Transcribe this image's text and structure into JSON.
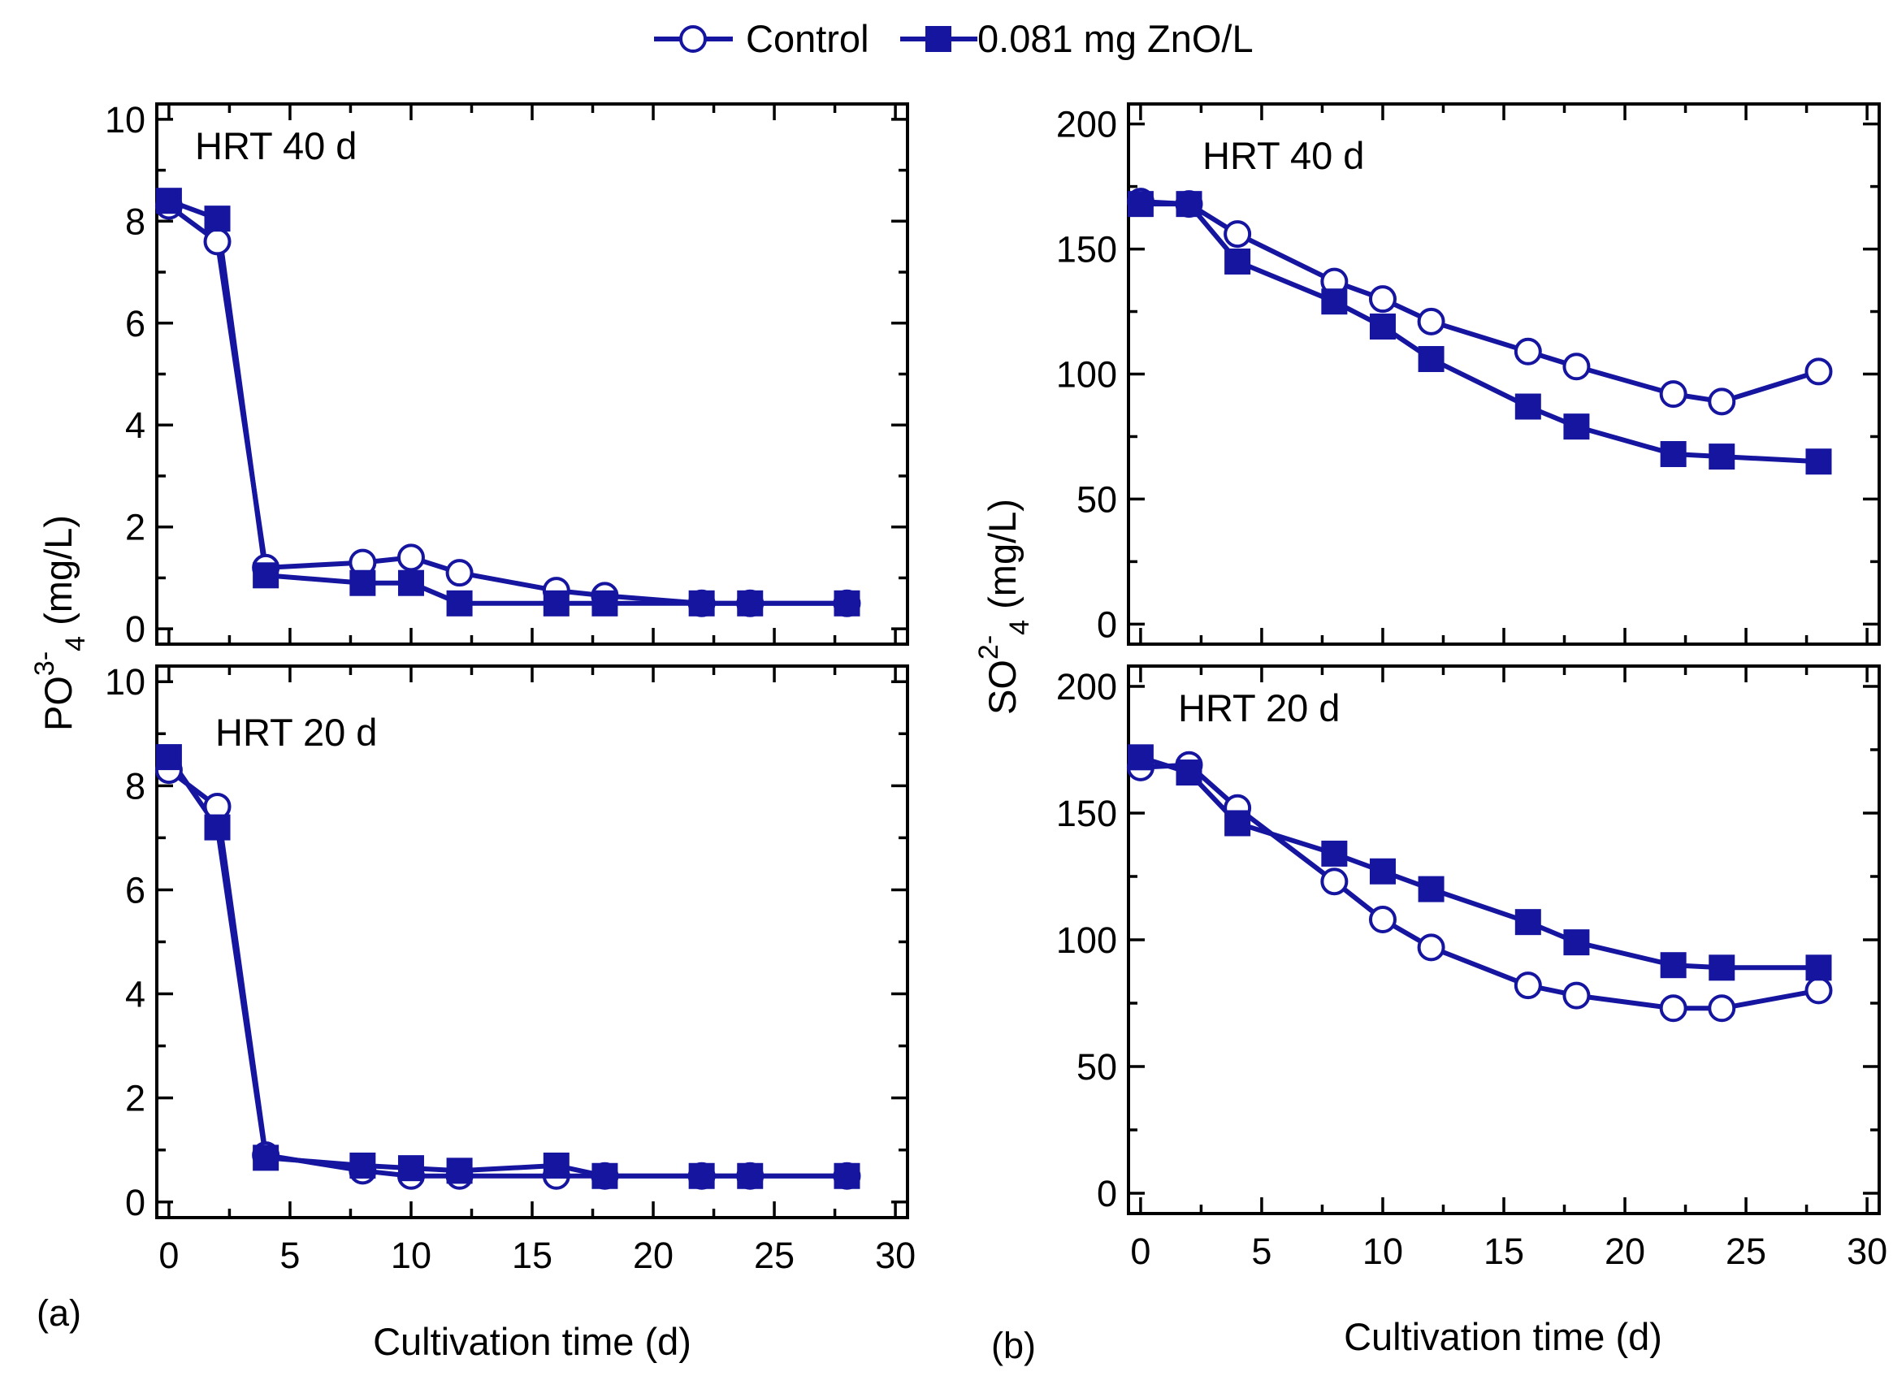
{
  "chart_data": {
    "type": "line",
    "legend": {
      "placement": "top-center",
      "entries": [
        {
          "name": "Control",
          "marker": "open-circle"
        },
        {
          "name": "0.081 mg ZnO/L",
          "marker": "filled-square"
        }
      ]
    },
    "colors": {
      "series": "#1515A0",
      "axes": "#000000"
    },
    "x": [
      0,
      2,
      4,
      8,
      10,
      12,
      16,
      18,
      22,
      24,
      28
    ],
    "xlabel": "Cultivation time (d)",
    "xlim": [
      -0.5,
      30.5
    ],
    "xticks": [
      0,
      5,
      10,
      15,
      20,
      25,
      30
    ],
    "panels": [
      {
        "id": "a",
        "letter": "(a)",
        "ylabel": {
          "main": "PO",
          "sup": "3-",
          "sub": "4",
          "unit": " (mg/L)"
        },
        "subplots": [
          {
            "label": "HRT 40 d",
            "ylim": [
              -0.3,
              10.3
            ],
            "yticks": [
              0,
              2,
              4,
              6,
              8,
              10
            ],
            "series": [
              {
                "name": "Control",
                "values": [
                  8.3,
                  7.6,
                  1.2,
                  1.3,
                  1.4,
                  1.1,
                  0.75,
                  0.65,
                  0.5,
                  0.5,
                  0.5
                ]
              },
              {
                "name": "0.081 mg ZnO/L",
                "values": [
                  8.4,
                  8.05,
                  1.05,
                  0.9,
                  0.9,
                  0.5,
                  0.5,
                  0.5,
                  0.5,
                  0.5,
                  0.5
                ]
              }
            ]
          },
          {
            "label": "HRT 20 d",
            "ylim": [
              -0.3,
              10.3
            ],
            "yticks": [
              0,
              2,
              4,
              6,
              8,
              10
            ],
            "series": [
              {
                "name": "Control",
                "values": [
                  8.3,
                  7.6,
                  0.9,
                  0.6,
                  0.5,
                  0.5,
                  0.5,
                  0.5,
                  0.5,
                  0.5,
                  0.5
                ]
              },
              {
                "name": "0.081 mg ZnO/L",
                "values": [
                  8.55,
                  7.2,
                  0.85,
                  0.7,
                  0.65,
                  0.6,
                  0.7,
                  0.5,
                  0.5,
                  0.5,
                  0.5
                ]
              }
            ]
          }
        ]
      },
      {
        "id": "b",
        "letter": "(b)",
        "ylabel": {
          "main": "SO",
          "sup": "2-",
          "sub": "4",
          "unit": " (mg/L)"
        },
        "subplots": [
          {
            "label": "HRT 40 d",
            "ylim": [
              -8,
              208
            ],
            "yticks": [
              0,
              50,
              100,
              150,
              200
            ],
            "series": [
              {
                "name": "Control",
                "values": [
                  169,
                  168,
                  156,
                  137,
                  130,
                  121,
                  109,
                  103,
                  92,
                  89,
                  101
                ]
              },
              {
                "name": "0.081 mg ZnO/L",
                "values": [
                  168,
                  168,
                  145,
                  129,
                  119,
                  106,
                  87,
                  79,
                  68,
                  67,
                  65
                ]
              }
            ]
          },
          {
            "label": "HRT 20 d",
            "ylim": [
              -8,
              208
            ],
            "yticks": [
              0,
              50,
              100,
              150,
              200
            ],
            "series": [
              {
                "name": "Control",
                "values": [
                  168,
                  169,
                  152,
                  123,
                  108,
                  97,
                  82,
                  78,
                  73,
                  73,
                  80
                ]
              },
              {
                "name": "0.081 mg ZnO/L",
                "values": [
                  172,
                  166,
                  146,
                  134,
                  127,
                  120,
                  107,
                  99,
                  90,
                  89,
                  89
                ]
              }
            ]
          }
        ]
      }
    ]
  }
}
